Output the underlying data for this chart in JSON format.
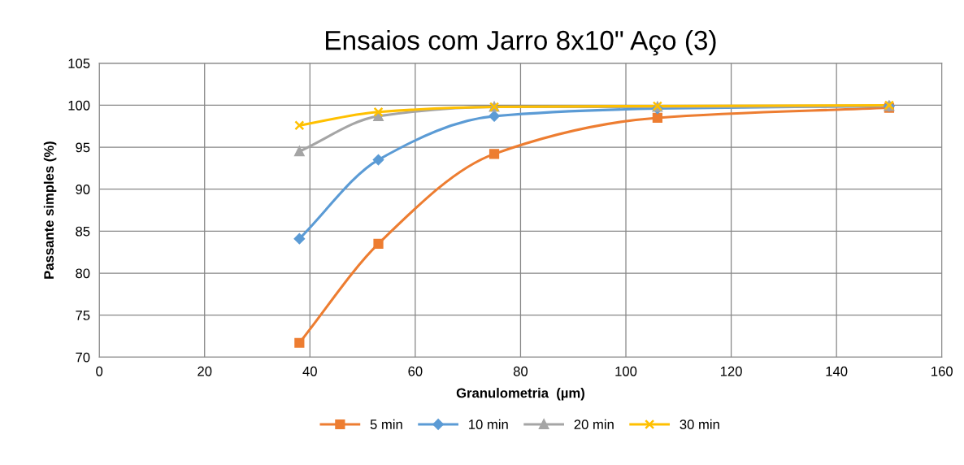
{
  "chart_data": {
    "type": "line",
    "title": "Ensaios com Jarro 8x10\" Aço (3)",
    "xlabel": "Granulometria  (µm)",
    "ylabel": "Passante simples (%)",
    "x": [
      38,
      53,
      75,
      106,
      150
    ],
    "series": [
      {
        "name": "5 min",
        "color": "#ed7d31",
        "marker": "square",
        "values": [
          71.7,
          83.5,
          94.2,
          98.5,
          99.7
        ]
      },
      {
        "name": "10 min",
        "color": "#5b9bd5",
        "marker": "diamond",
        "values": [
          84.1,
          93.5,
          98.7,
          99.6,
          99.9
        ]
      },
      {
        "name": "20 min",
        "color": "#a5a5a5",
        "marker": "triangle",
        "values": [
          94.5,
          98.7,
          99.8,
          99.8,
          99.9
        ]
      },
      {
        "name": "30 min",
        "color": "#ffc000",
        "marker": "cross",
        "values": [
          97.6,
          99.2,
          99.8,
          99.9,
          100.0
        ]
      }
    ],
    "xlim": [
      0,
      160
    ],
    "xticks": [
      0,
      20,
      40,
      60,
      80,
      100,
      120,
      140,
      160
    ],
    "ylim": [
      70,
      105
    ],
    "yticks": [
      70,
      75,
      80,
      85,
      90,
      95,
      100,
      105
    ],
    "grid": true,
    "legend": "bottom"
  }
}
